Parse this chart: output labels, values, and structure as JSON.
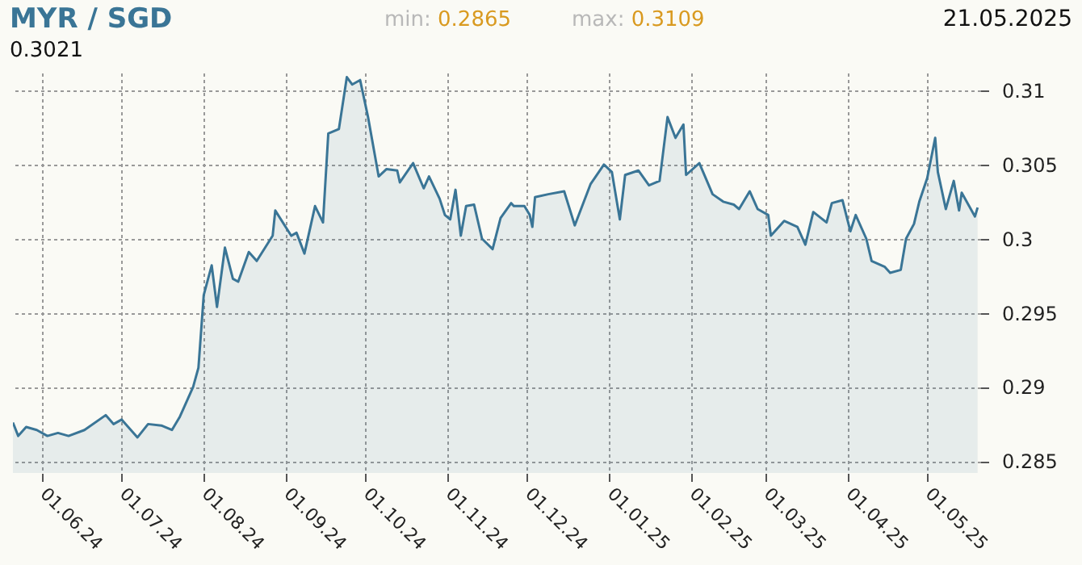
{
  "chart_data": {
    "type": "area",
    "title": "MYR / SGD",
    "annotations": [
      "min: 0.2865",
      "max: 0.3109",
      "21.05.2025",
      "0.3021"
    ],
    "x": [
      "2024-05-21",
      "2024-05-23",
      "2024-05-26",
      "2024-05-30",
      "2024-06-03",
      "2024-06-07",
      "2024-06-11",
      "2024-06-17",
      "2024-06-25",
      "2024-06-28",
      "2024-07-01",
      "2024-07-07",
      "2024-07-11",
      "2024-07-16",
      "2024-07-20",
      "2024-07-23",
      "2024-07-28",
      "2024-07-30",
      "2024-08-01",
      "2024-08-04",
      "2024-08-06",
      "2024-08-09",
      "2024-08-12",
      "2024-08-14",
      "2024-08-18",
      "2024-08-21",
      "2024-08-27",
      "2024-08-28",
      "2024-09-03",
      "2024-09-05",
      "2024-09-08",
      "2024-09-12",
      "2024-09-15",
      "2024-09-17",
      "2024-09-21",
      "2024-09-24",
      "2024-09-26",
      "2024-09-29",
      "2024-10-02",
      "2024-10-06",
      "2024-10-09",
      "2024-10-13",
      "2024-10-14",
      "2024-10-19",
      "2024-10-23",
      "2024-10-25",
      "2024-10-29",
      "2024-10-31",
      "2024-11-02",
      "2024-11-04",
      "2024-11-06",
      "2024-11-08",
      "2024-11-11",
      "2024-11-14",
      "2024-11-18",
      "2024-11-21",
      "2024-11-25",
      "2024-11-26",
      "2024-11-30",
      "2024-12-02",
      "2024-12-03",
      "2024-12-04",
      "2024-12-09",
      "2024-12-15",
      "2024-12-19",
      "2024-12-25",
      "2024-12-30",
      "2025-01-02",
      "2025-01-05",
      "2025-01-07",
      "2025-01-12",
      "2025-01-16",
      "2025-01-20",
      "2025-01-23",
      "2025-01-26",
      "2025-01-29",
      "2025-01-30",
      "2025-02-04",
      "2025-02-09",
      "2025-02-13",
      "2025-02-17",
      "2025-02-19",
      "2025-02-23",
      "2025-02-26",
      "2025-03-02",
      "2025-03-03",
      "2025-03-08",
      "2025-03-13",
      "2025-03-16",
      "2025-03-19",
      "2025-03-24",
      "2025-03-26",
      "2025-03-30",
      "2025-04-02",
      "2025-04-04",
      "2025-04-08",
      "2025-04-10",
      "2025-04-15",
      "2025-04-17",
      "2025-04-21",
      "2025-04-23",
      "2025-04-26",
      "2025-04-28",
      "2025-05-01",
      "2025-05-04",
      "2025-05-05",
      "2025-05-08",
      "2025-05-11",
      "2025-05-13",
      "2025-05-14",
      "2025-05-19",
      "2025-05-20"
    ],
    "series": [
      {
        "color": "#3a7596",
        "values": [
          0.2876,
          0.2867,
          0.2873,
          0.2871,
          0.2867,
          0.2869,
          0.2867,
          0.2871,
          0.2881,
          0.2875,
          0.2878,
          0.2866,
          0.2875,
          0.2874,
          0.2871,
          0.288,
          0.29,
          0.2913,
          0.2962,
          0.2982,
          0.2954,
          0.2994,
          0.2973,
          0.2971,
          0.2991,
          0.2985,
          0.3002,
          0.3019,
          0.3002,
          0.3004,
          0.299,
          0.3022,
          0.3011,
          0.3071,
          0.3074,
          0.3109,
          0.3104,
          0.3107,
          0.3082,
          0.3042,
          0.3047,
          0.3046,
          0.3038,
          0.3051,
          0.3034,
          0.3042,
          0.3027,
          0.3016,
          0.3013,
          0.3033,
          0.3002,
          0.3022,
          0.3023,
          0.3,
          0.2993,
          0.3014,
          0.3024,
          0.3022,
          0.3022,
          0.3016,
          0.3008,
          0.3028,
          0.303,
          0.3032,
          0.3009,
          0.3037,
          0.305,
          0.3045,
          0.3013,
          0.3043,
          0.3046,
          0.3036,
          0.3039,
          0.3082,
          0.3068,
          0.3077,
          0.3043,
          0.3051,
          0.303,
          0.3025,
          0.3023,
          0.302,
          0.3032,
          0.302,
          0.3016,
          0.3002,
          0.3012,
          0.3008,
          0.2996,
          0.3018,
          0.3011,
          0.3024,
          0.3026,
          0.3005,
          0.3016,
          0.3,
          0.2985,
          0.2981,
          0.2977,
          0.2979,
          0.3,
          0.301,
          0.3025,
          0.3041,
          0.3068,
          0.3045,
          0.302,
          0.3039,
          0.3019,
          0.3031,
          0.3015,
          0.3021
        ]
      }
    ],
    "xlim": [
      "2024-05-21",
      "2025-05-21"
    ],
    "xticks": [
      {
        "value": "2024-06-01",
        "label": "01.06.24"
      },
      {
        "value": "2024-07-01",
        "label": "01.07.24"
      },
      {
        "value": "2024-08-01",
        "label": "01.08.24"
      },
      {
        "value": "2024-09-01",
        "label": "01.09.24"
      },
      {
        "value": "2024-10-01",
        "label": "01.10.24"
      },
      {
        "value": "2024-11-01",
        "label": "01.11.24"
      },
      {
        "value": "2024-12-01",
        "label": "01.12.24"
      },
      {
        "value": "2025-01-01",
        "label": "01.01.25"
      },
      {
        "value": "2025-02-01",
        "label": "01.02.25"
      },
      {
        "value": "2025-03-01",
        "label": "01.03.25"
      },
      {
        "value": "2025-04-01",
        "label": "01.04.25"
      },
      {
        "value": "2025-05-01",
        "label": "01.05.25"
      }
    ],
    "ylim": [
      0.2842,
      0.3112
    ],
    "yticks": [
      0.285,
      0.29,
      0.295,
      0.3,
      0.305,
      0.31
    ],
    "grid": true
  }
}
